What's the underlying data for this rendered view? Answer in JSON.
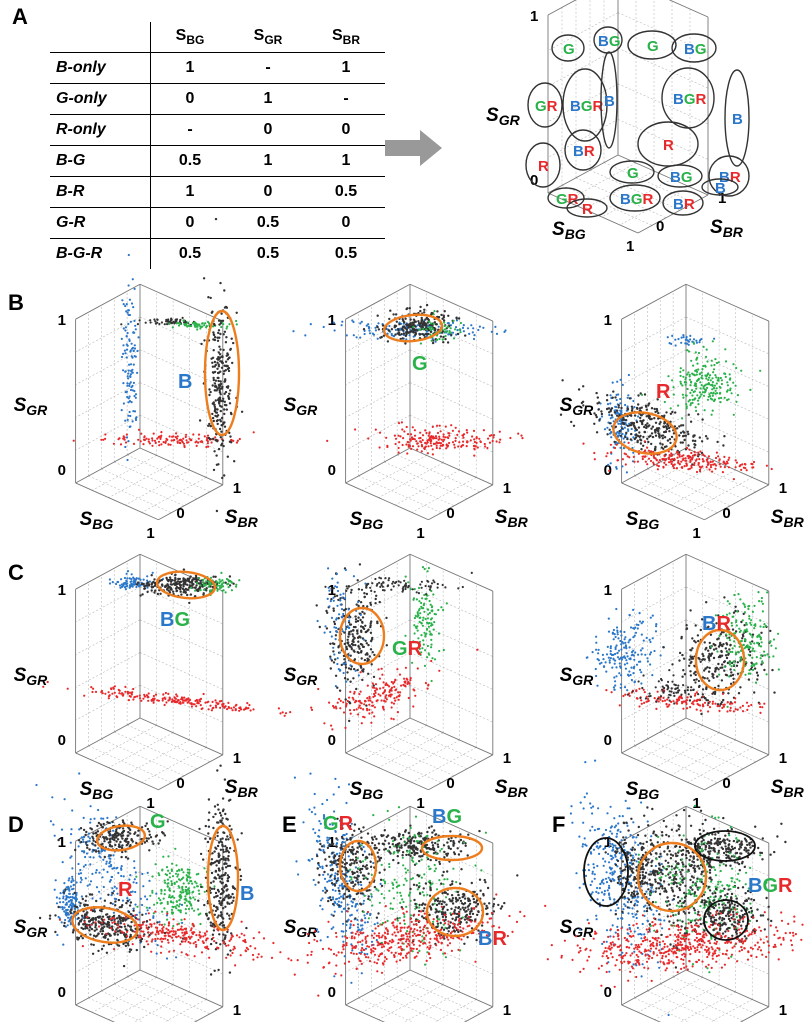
{
  "panels": [
    "A",
    "B",
    "C",
    "D",
    "E",
    "F"
  ],
  "table": {
    "headers": [
      "S",
      "S",
      "S"
    ],
    "header_subs": [
      "BG",
      "GR",
      "BR"
    ],
    "rows": [
      {
        "label": "B-only",
        "values": [
          "1",
          "-",
          "1"
        ]
      },
      {
        "label": "G-only",
        "values": [
          "0",
          "1",
          "-"
        ]
      },
      {
        "label": "R-only",
        "values": [
          "-",
          "0",
          "0"
        ]
      },
      {
        "label": "B-G",
        "values": [
          "0.5",
          "1",
          "1"
        ]
      },
      {
        "label": "B-R",
        "values": [
          "1",
          "0",
          "0.5"
        ]
      },
      {
        "label": "G-R",
        "values": [
          "0",
          "0.5",
          "0"
        ]
      },
      {
        "label": "B-G-R",
        "values": [
          "0.5",
          "0.5",
          "0.5"
        ]
      }
    ]
  },
  "axes": {
    "s": "S",
    "gr": "GR",
    "bg": "BG",
    "br": "BR",
    "tick0": "0",
    "tick1": "1"
  },
  "schematic_labels": [
    "G",
    "BG",
    "G",
    "BG",
    "GR",
    "BGR",
    "B",
    "BGR",
    "B",
    "R",
    "R",
    "BR",
    "BR",
    "G",
    "BG",
    "B",
    "GR",
    "R",
    "BGR",
    "BR"
  ],
  "cluster_labels": {
    "B1": "B",
    "B2": "G",
    "B3": "R",
    "C1": "BG",
    "C2": "GR",
    "C3": "BR",
    "D_G": "G",
    "D_B": "B",
    "D_R": "R",
    "E_BG": "BG",
    "E_GR": "GR",
    "E_BR": "BR",
    "F": "BGR"
  },
  "colors": {
    "blue": "#2b77c9",
    "green": "#2ab24a",
    "red": "#e8292b",
    "orange": "#ee7d1d",
    "dark": "#333333",
    "grid": "#b8b8b8",
    "arrow": "#999999"
  }
}
